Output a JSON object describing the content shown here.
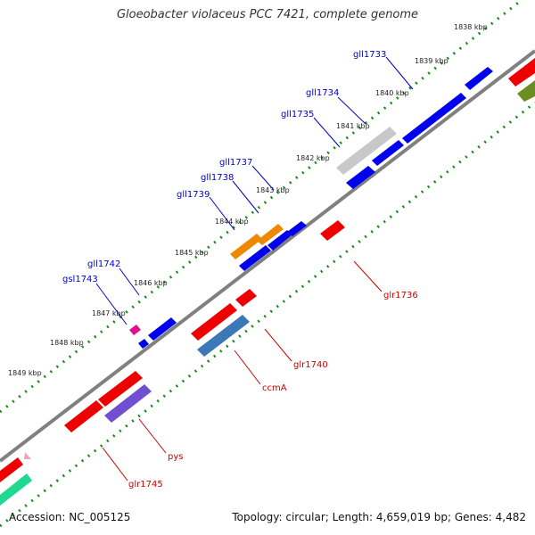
{
  "title": "Gloeobacter violaceus PCC 7421, complete genome",
  "accession": "Accession: NC_005125",
  "summary": "Topology: circular; Length: 4,659,019 bp; Genes: 4,482",
  "colors": {
    "blue_gene": "#0000ee",
    "red_gene": "#ee0000",
    "label_blue": "#0000cc",
    "label_red": "#cc0000",
    "tick_green": "#1a8a1a",
    "backbone": "#808080"
  },
  "kbp_ticks": [
    "1838 kbp",
    "1839 kbp",
    "1840 kbp",
    "1841 kbp",
    "1842 kbp",
    "1843 kbp",
    "1844 kbp",
    "1845 kbp",
    "1846 kbp",
    "1847 kbp",
    "1848 kbp",
    "1849 kbp"
  ],
  "forward_genes": [
    {
      "label": "gll1733",
      "color": "#0000ee"
    },
    {
      "label": "gll1734",
      "color": "#0000ee"
    },
    {
      "label": "gll1735",
      "color": "#c8c8c8"
    },
    {
      "label": "gll1737",
      "color": "#0000ee"
    },
    {
      "label": "gll1738",
      "color": "#0000ee"
    },
    {
      "label": "gll1739",
      "color": "#ee8800"
    },
    {
      "label": "gll1742",
      "color": "#0000ee"
    },
    {
      "label": "gsl1743",
      "color": "#e0108a"
    }
  ],
  "reverse_genes": [
    {
      "label": "glr1736",
      "color": "#ee0000"
    },
    {
      "label": "glr1740",
      "color": "#ee0000"
    },
    {
      "label": "ccmA",
      "color": "#3a78b8"
    },
    {
      "label": "pys",
      "color": "#7050d0"
    },
    {
      "label": "glr1745",
      "color": "#ee0000"
    }
  ]
}
